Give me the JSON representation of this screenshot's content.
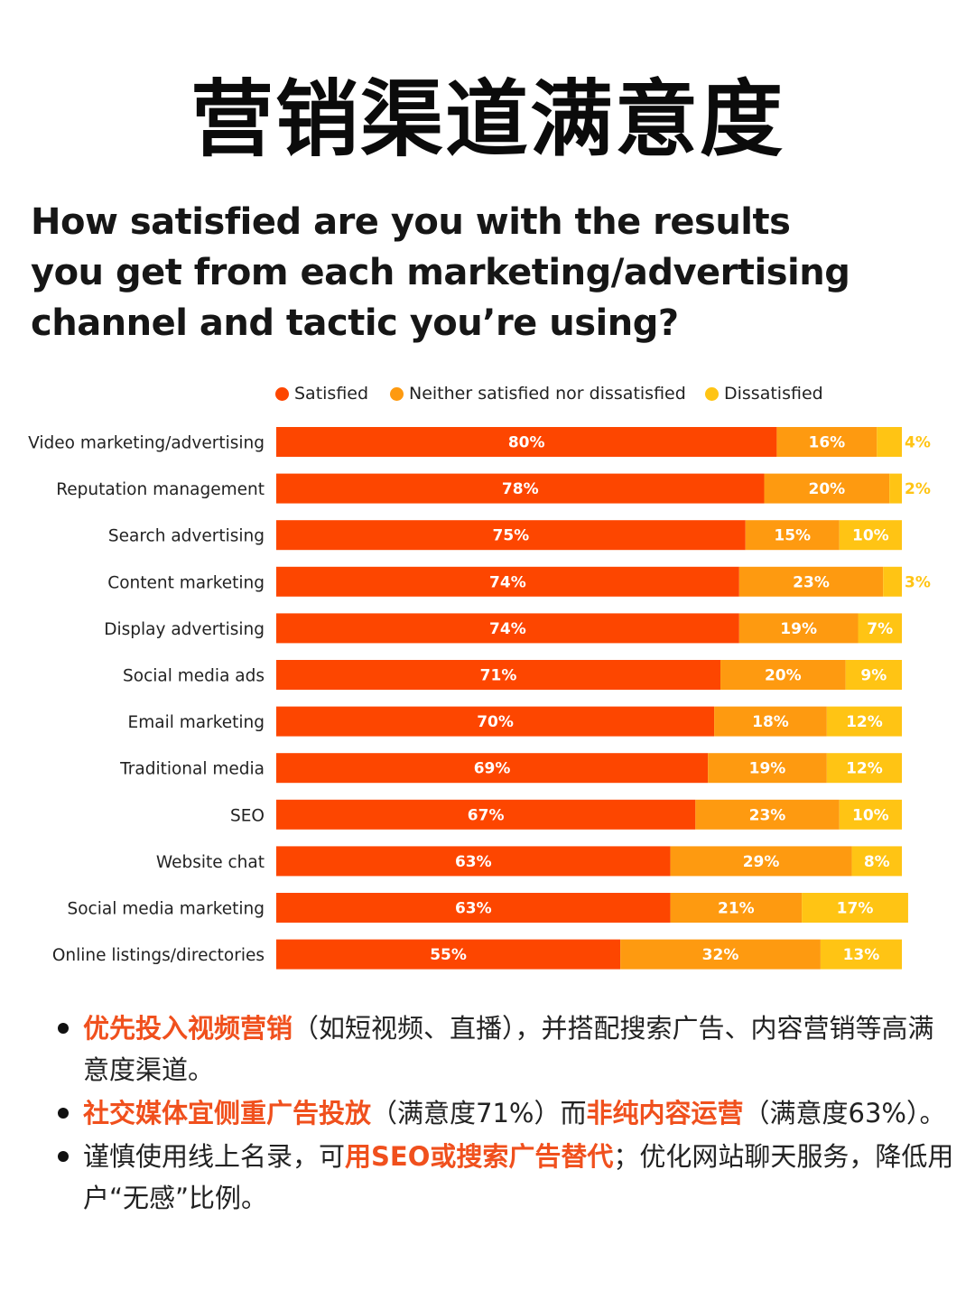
{
  "page_title": "营销渠道满意度",
  "question_lines": [
    "How satisfied are you with the results",
    "you get from each marketing/advertising",
    "channel and tactic you’re using?"
  ],
  "colors": {
    "satisfied": "#fd4600",
    "neither": "#fe9a10",
    "dissatisfied": "#ffc414",
    "highlight": "#f0501d"
  },
  "legend": {
    "satisfied": "Satisfied",
    "neither": "Neither satisfied nor dissatisfied",
    "dissatisfied": "Dissatisfied"
  },
  "chart_data": {
    "type": "bar",
    "orientation": "horizontal",
    "stacked": true,
    "title": "",
    "xlabel": "",
    "ylabel": "",
    "xlim": [
      0,
      100
    ],
    "legend_placement": "top",
    "grid": false,
    "categories": [
      "Video marketing/advertising",
      "Reputation management",
      "Search advertising",
      "Content marketing",
      "Display advertising",
      "Social media ads",
      "Email marketing",
      "Traditional media",
      "SEO",
      "Website chat",
      "Social media marketing",
      "Online listings/directories"
    ],
    "series": [
      {
        "name": "Satisfied",
        "values": [
          80,
          78,
          75,
          74,
          74,
          71,
          70,
          69,
          67,
          63,
          63,
          55
        ]
      },
      {
        "name": "Neither satisfied nor dissatisfied",
        "values": [
          16,
          20,
          15,
          23,
          19,
          20,
          18,
          19,
          23,
          29,
          21,
          32
        ]
      },
      {
        "name": "Dissatisfied",
        "values": [
          4,
          2,
          10,
          3,
          7,
          9,
          12,
          12,
          10,
          8,
          17,
          13
        ]
      }
    ]
  },
  "notes": [
    {
      "parts": [
        {
          "text": "优先投入视频营销",
          "hl": true
        },
        {
          "text": "（如短视频、直播），并搭配搜索广告、内容营销等高满意度渠道。",
          "hl": false
        }
      ]
    },
    {
      "parts": [
        {
          "text": "社交媒体宜侧重广告投放",
          "hl": true
        },
        {
          "text": "（满意度71%）而",
          "hl": false
        },
        {
          "text": "非纯内容运营",
          "hl": true
        },
        {
          "text": "（满意度63%）。",
          "hl": false
        }
      ]
    },
    {
      "parts": [
        {
          "text": "谨慎使用线上名录，可",
          "hl": false
        },
        {
          "text": "用SEO或搜索广告替代",
          "hl": true
        },
        {
          "text": "；优化网站聊天服务，降低用户“无感”比例。",
          "hl": false
        }
      ]
    }
  ]
}
